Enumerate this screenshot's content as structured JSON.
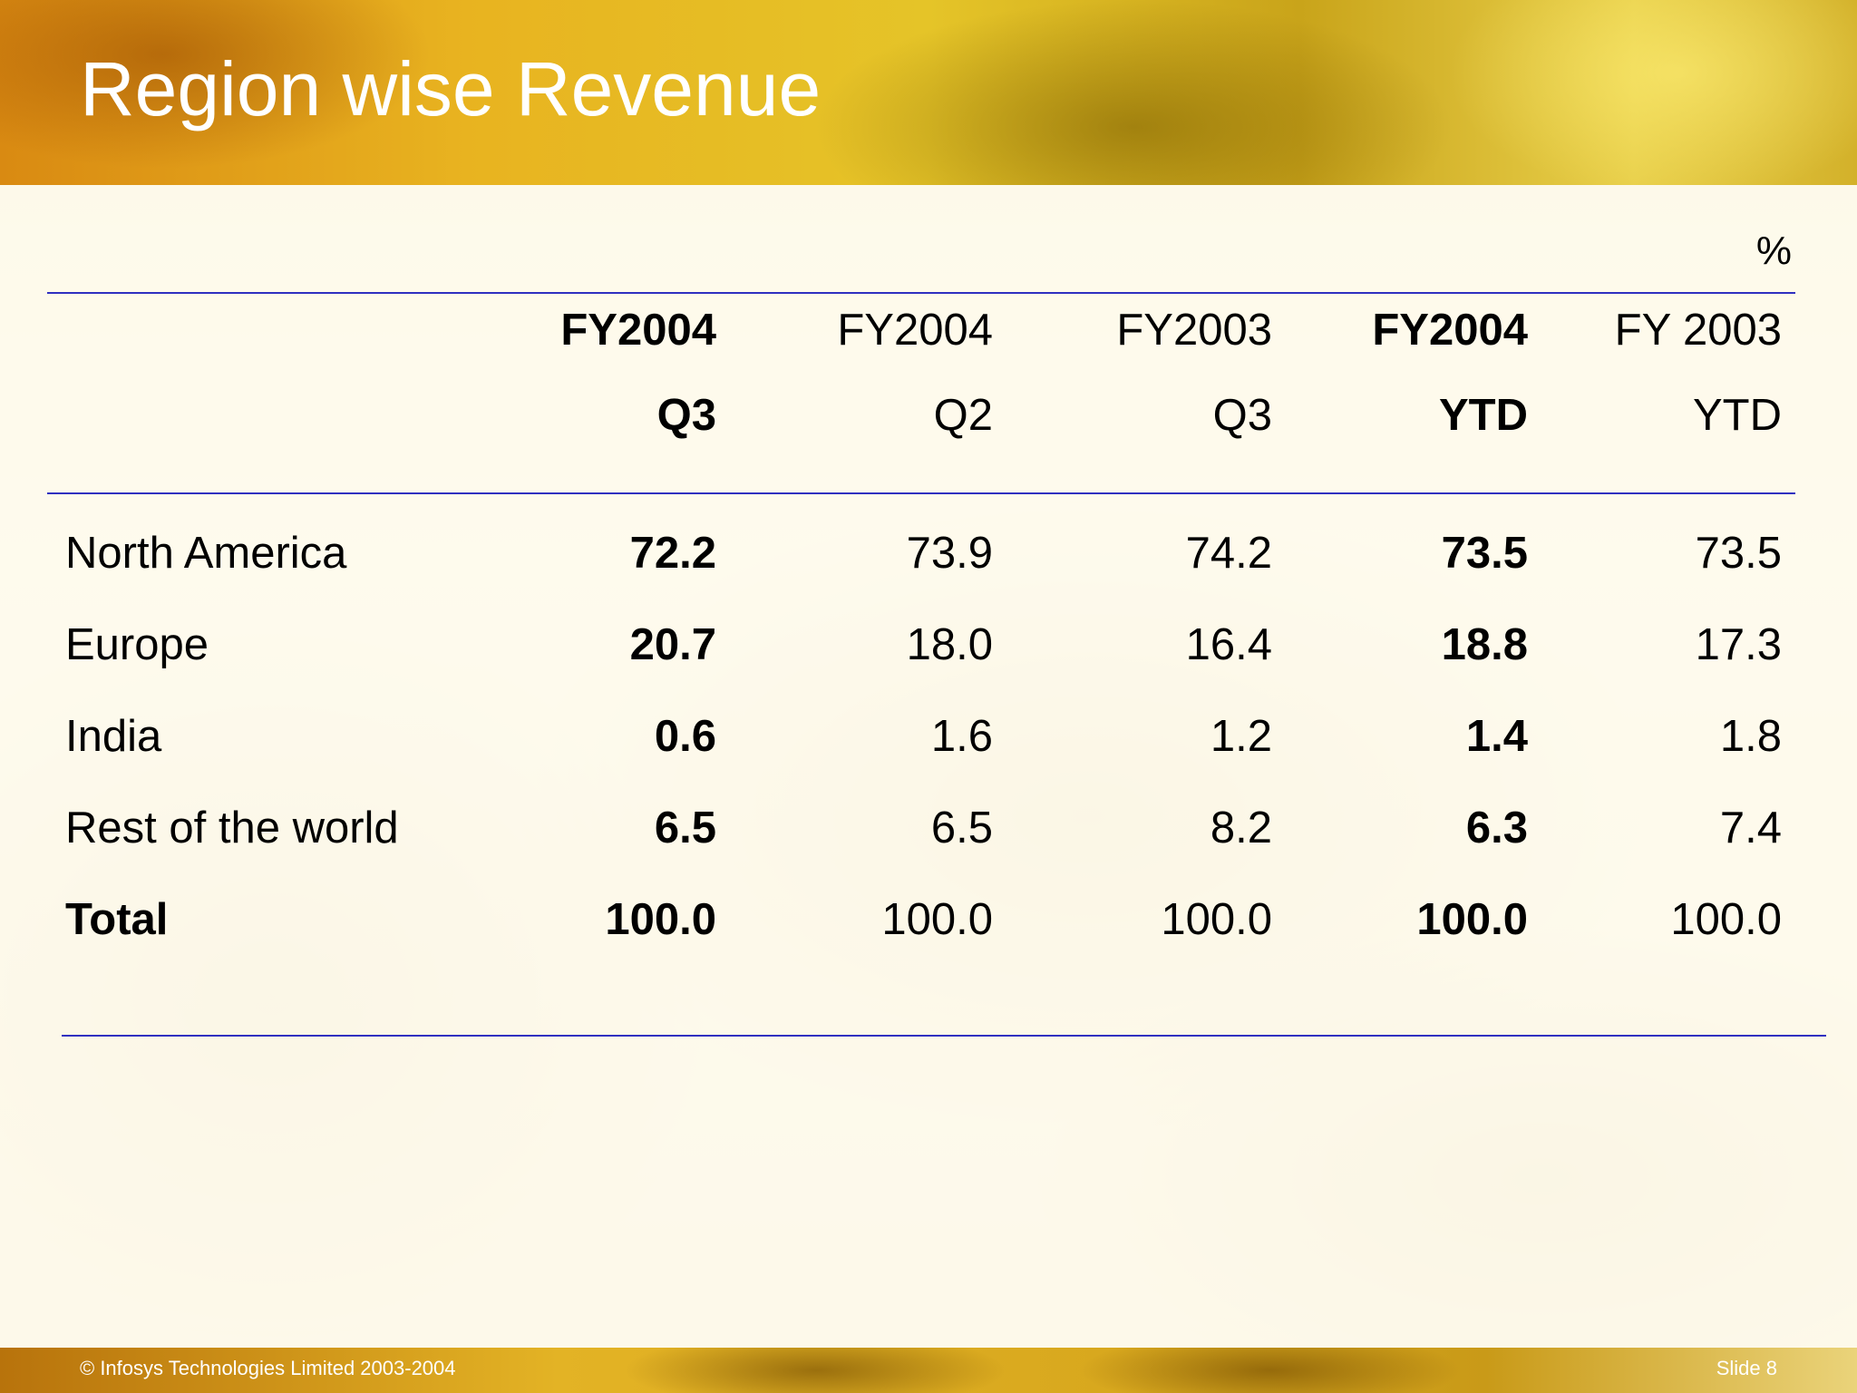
{
  "slide": {
    "title": "Region wise Revenue",
    "unit": "%",
    "footer": {
      "copyright": "© Infosys Technologies Limited 2003-2004",
      "slide_number": "Slide 8"
    }
  },
  "table": {
    "columns": [
      {
        "line1": "FY2004",
        "line2": "Q3"
      },
      {
        "line1": "FY2004",
        "line2": "Q2"
      },
      {
        "line1": "FY2003",
        "line2": "Q3"
      },
      {
        "line1": "FY2004",
        "line2": "YTD"
      },
      {
        "line1": "FY 2003",
        "line2": "YTD"
      }
    ],
    "rows": [
      {
        "label": "North America",
        "values": [
          "72.2",
          "73.9",
          "74.2",
          "73.5",
          "73.5"
        ]
      },
      {
        "label": "Europe",
        "values": [
          "20.7",
          "18.0",
          "16.4",
          "18.8",
          "17.3"
        ]
      },
      {
        "label": "India",
        "values": [
          "0.6",
          "1.6",
          "1.2",
          "1.4",
          "1.8"
        ]
      },
      {
        "label": "Rest of the world",
        "values": [
          "6.5",
          "6.5",
          "8.2",
          "6.3",
          "7.4"
        ]
      },
      {
        "label": "Total",
        "values": [
          "100.0",
          "100.0",
          "100.0",
          "100.0",
          "100.0"
        ]
      }
    ]
  },
  "colors": {
    "rule": "#3030c0",
    "title_text": "#ffffff"
  }
}
